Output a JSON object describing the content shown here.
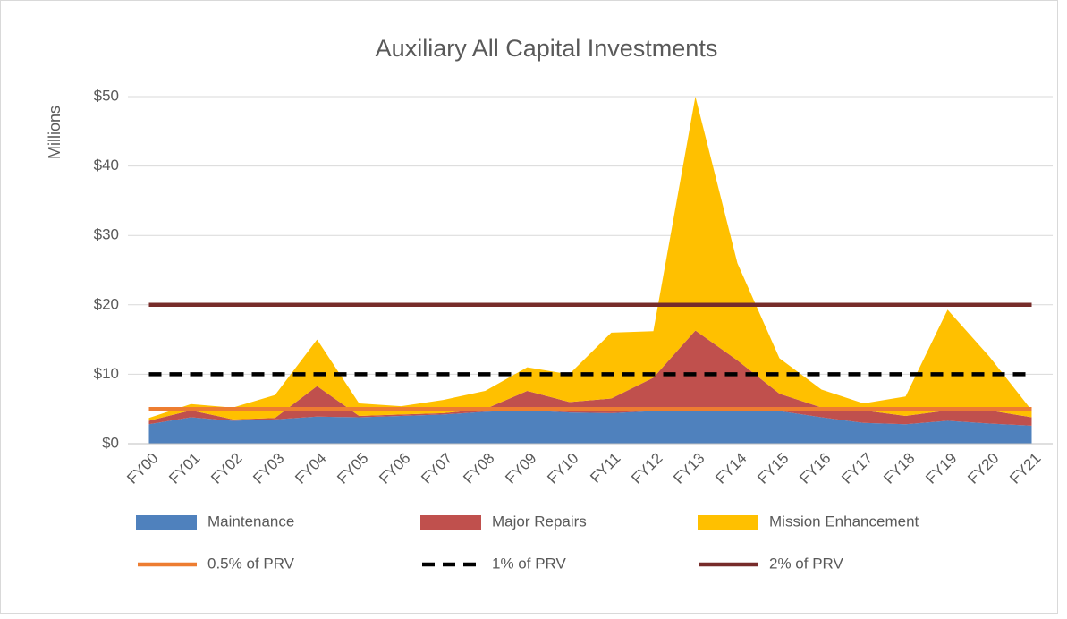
{
  "chart_data": {
    "type": "area",
    "stacked": true,
    "title": "Auxiliary All Capital Investments",
    "y_label": "Millions",
    "categories": [
      "FY00",
      "FY01",
      "FY02",
      "FY03",
      "FY04",
      "FY05",
      "FY06",
      "FY07",
      "FY08",
      "FY09",
      "FY10",
      "FY11",
      "FY12",
      "FY13",
      "FY14",
      "FY15",
      "FY16",
      "FY17",
      "FY18",
      "FY19",
      "FY20",
      "FY21"
    ],
    "series": [
      {
        "name": "Maintenance",
        "color": "#4f81bd",
        "kind": "area",
        "values": [
          2.8,
          3.8,
          3.3,
          3.5,
          3.9,
          3.8,
          4.0,
          4.2,
          4.6,
          4.8,
          4.5,
          4.4,
          4.7,
          4.7,
          4.8,
          4.7,
          3.8,
          3.0,
          2.8,
          3.3,
          2.9,
          2.6
        ]
      },
      {
        "name": "Major Repairs",
        "color": "#c0504d",
        "kind": "area",
        "values": [
          0.5,
          1.0,
          0.2,
          0.2,
          4.4,
          0.2,
          0.2,
          0.2,
          0.4,
          2.8,
          1.5,
          2.1,
          4.8,
          11.6,
          7.2,
          2.5,
          1.4,
          1.8,
          1.2,
          1.5,
          1.9,
          1.2
        ]
      },
      {
        "name": "Mission Enhancement",
        "color": "#ffc000",
        "kind": "area",
        "values": [
          0.4,
          0.9,
          1.7,
          3.3,
          6.7,
          1.8,
          1.2,
          1.9,
          2.6,
          3.4,
          4.0,
          9.5,
          6.7,
          33.7,
          14.0,
          5.1,
          2.6,
          1.0,
          2.8,
          14.5,
          7.7,
          1.0
        ]
      },
      {
        "name": "0.5% of PRV",
        "color": "#ed7d31",
        "kind": "line",
        "dashed": false,
        "values": [
          5,
          5,
          5,
          5,
          5,
          5,
          5,
          5,
          5,
          5,
          5,
          5,
          5,
          5,
          5,
          5,
          5,
          5,
          5,
          5,
          5,
          5
        ]
      },
      {
        "name": "1% of PRV",
        "color": "#000000",
        "kind": "line",
        "dashed": true,
        "values": [
          10,
          10,
          10,
          10,
          10,
          10,
          10,
          10,
          10,
          10,
          10,
          10,
          10,
          10,
          10,
          10,
          10,
          10,
          10,
          10,
          10,
          10
        ]
      },
      {
        "name": "2% of PRV",
        "color": "#772c2a",
        "kind": "line",
        "dashed": false,
        "values": [
          20,
          20,
          20,
          20,
          20,
          20,
          20,
          20,
          20,
          20,
          20,
          20,
          20,
          20,
          20,
          20,
          20,
          20,
          20,
          20,
          20,
          20
        ]
      }
    ],
    "ylim": [
      0,
      50
    ],
    "yticks": [
      {
        "value": 0,
        "label": "$0"
      },
      {
        "value": 10,
        "label": "$10"
      },
      {
        "value": 20,
        "label": "$20"
      },
      {
        "value": 30,
        "label": "$30"
      },
      {
        "value": 40,
        "label": "$40"
      },
      {
        "value": 50,
        "label": "$50"
      }
    ],
    "grid": true,
    "legend": "bottom"
  }
}
